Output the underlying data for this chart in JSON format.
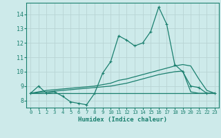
{
  "x": [
    0,
    1,
    2,
    3,
    4,
    5,
    6,
    7,
    8,
    9,
    10,
    11,
    12,
    13,
    14,
    15,
    16,
    17,
    18,
    19,
    20,
    21,
    22,
    23
  ],
  "y_main": [
    8.5,
    9.0,
    8.5,
    8.6,
    8.3,
    7.9,
    7.8,
    7.7,
    8.5,
    9.9,
    10.7,
    12.5,
    12.2,
    11.8,
    12.0,
    12.8,
    14.5,
    13.3,
    10.5,
    10.0,
    9.0,
    8.9,
    8.5,
    8.5
  ],
  "y_line1": [
    8.5,
    8.6,
    8.7,
    8.75,
    8.8,
    8.85,
    8.9,
    8.95,
    9.0,
    9.1,
    9.2,
    9.4,
    9.5,
    9.65,
    9.8,
    9.95,
    10.1,
    10.25,
    10.4,
    10.5,
    10.4,
    9.5,
    8.7,
    8.5
  ],
  "y_line2": [
    8.5,
    8.55,
    8.6,
    8.65,
    8.7,
    8.75,
    8.8,
    8.85,
    8.9,
    8.95,
    9.0,
    9.1,
    9.2,
    9.35,
    9.5,
    9.65,
    9.8,
    9.9,
    10.0,
    10.05,
    8.6,
    8.5,
    8.5,
    8.5
  ],
  "y_line3": [
    8.5,
    8.5,
    8.5,
    8.5,
    8.5,
    8.5,
    8.5,
    8.5,
    8.5,
    8.5,
    8.5,
    8.5,
    8.5,
    8.5,
    8.5,
    8.5,
    8.5,
    8.5,
    8.5,
    8.5,
    8.5,
    8.5,
    8.5,
    8.5
  ],
  "color": "#1a7f6e",
  "bg_color": "#cdeaea",
  "xlabel": "Humidex (Indice chaleur)",
  "yticks": [
    8,
    9,
    10,
    11,
    12,
    13,
    14
  ],
  "xlim": [
    -0.5,
    23.5
  ],
  "ylim": [
    7.5,
    14.8
  ],
  "grid_color": "#b8d4d4"
}
